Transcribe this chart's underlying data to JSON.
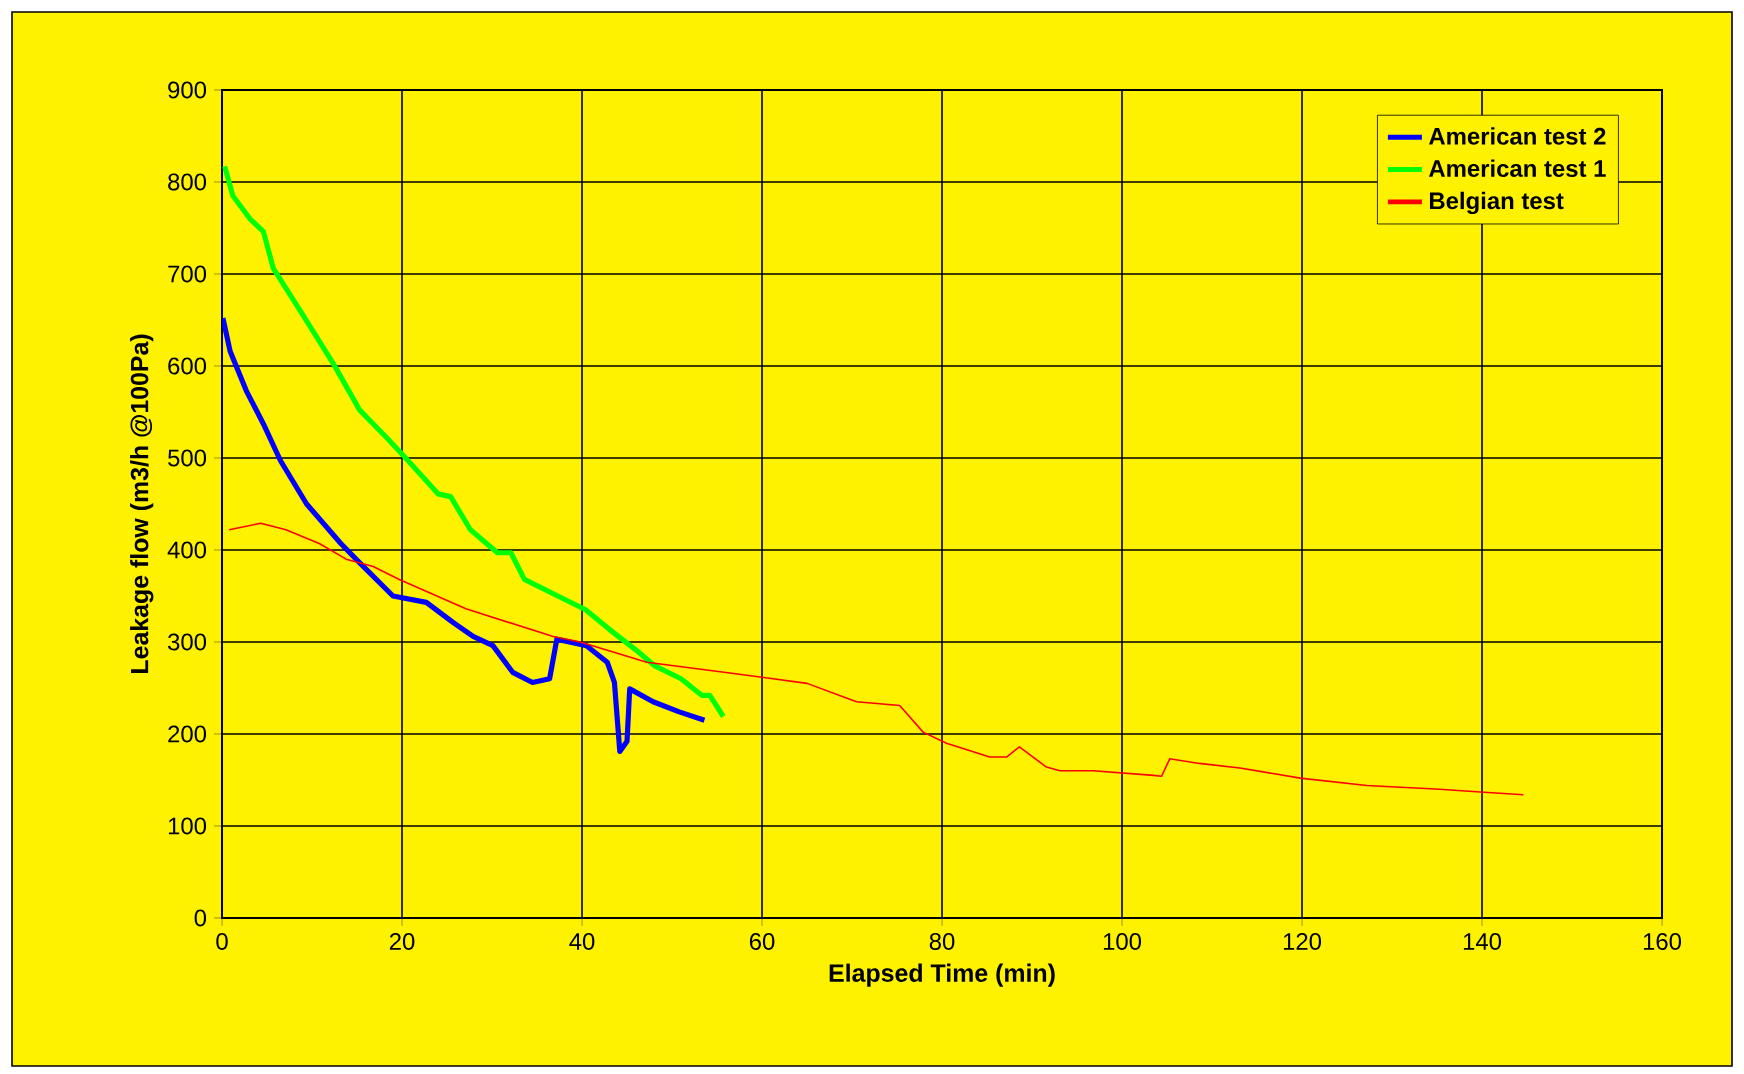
{
  "chart_data": {
    "type": "line",
    "xlabel": "Elapsed Time (min)",
    "ylabel": "Leakage flow (m3/h @100Pa)",
    "xlim": [
      0,
      160
    ],
    "xticks": [
      0,
      20,
      40,
      60,
      80,
      100,
      120,
      140,
      160
    ],
    "ylim": [
      0,
      900
    ],
    "yticks": [
      0,
      100,
      200,
      300,
      400,
      500,
      600,
      700,
      800,
      900
    ],
    "grid": true,
    "legend": "top right",
    "marker": "none",
    "line_style": "solid",
    "series": [
      {
        "name": "American test 2",
        "color": "#0000ff",
        "x": [
          0.1,
          0.9,
          2.7,
          4.6,
          6.5,
          9.4,
          13.2,
          15.3,
          19,
          22.7,
          25.7,
          27.9,
          30.1,
          32.3,
          34.5,
          36.4,
          37.2,
          40.5,
          42.8,
          43.6,
          44.2,
          45,
          45.3,
          47.9,
          50.8,
          53.6
        ],
        "values": [
          652,
          616,
          573,
          537,
          497,
          450,
          407,
          386,
          350,
          343,
          321,
          306,
          296,
          267,
          256,
          260,
          303,
          296,
          278,
          256,
          181,
          192,
          249,
          235,
          224,
          215
        ]
      },
      {
        "name": "American test 1",
        "color": "#00ff00",
        "x": [
          0.3,
          1.2,
          3.1,
          4.6,
          5.7,
          8.7,
          12.4,
          15.3,
          18.3,
          20.3,
          24,
          25.4,
          27.6,
          30.6,
          32.1,
          33.6,
          37.3,
          40.4,
          43,
          45.9,
          48.1,
          51,
          53.3,
          54.2,
          55.7
        ],
        "values": [
          817,
          785,
          760,
          746,
          706,
          660,
          602,
          552,
          522,
          501,
          461,
          458,
          422,
          397,
          397,
          368,
          350,
          335,
          314,
          292,
          274,
          260,
          242,
          242,
          219
        ]
      },
      {
        "name": "Belgian test",
        "color": "#ff0000",
        "x": [
          0.8,
          4.3,
          7.1,
          10.8,
          13.8,
          16.8,
          19.7,
          27.1,
          36.8,
          39.8,
          47.2,
          57.5,
          65,
          70.5,
          75.3,
          77.9,
          80.5,
          85.3,
          87.2,
          88.6,
          91.6,
          93.1,
          96.8,
          103.5,
          104.4,
          105.3,
          108.6,
          113.1,
          119.8,
          127.2,
          135.3,
          139.8,
          144.6
        ],
        "values": [
          422,
          429,
          422,
          407,
          390,
          382,
          368,
          336,
          306,
          300,
          278,
          265,
          255,
          235,
          231,
          202,
          190,
          175,
          175,
          186,
          164,
          160,
          160,
          155,
          154,
          173,
          168,
          163,
          152,
          144,
          140,
          137,
          134
        ]
      }
    ]
  }
}
